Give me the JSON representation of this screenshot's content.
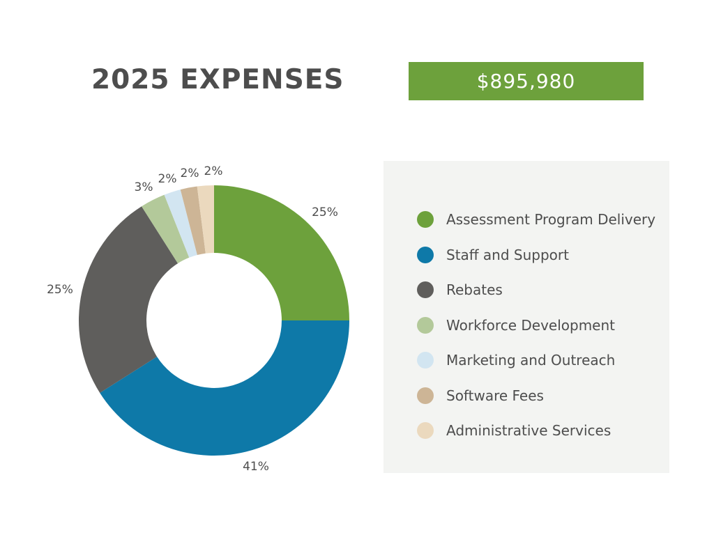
{
  "header": {
    "title": "2025 EXPENSES",
    "total": "$895,980",
    "total_bg": "#6da13c"
  },
  "chart_data": {
    "type": "pie",
    "variant": "donut",
    "title": "2025 EXPENSES",
    "total": "$895,980",
    "categories": [
      "Assessment Program Delivery",
      "Staff and Support",
      "Rebates",
      "Workforce Development",
      "Marketing and Outreach",
      "Software Fees",
      "Administrative Services"
    ],
    "values": [
      25,
      41,
      25,
      3,
      2,
      2,
      2
    ],
    "labels": [
      "25%",
      "41%",
      "25%",
      "3%",
      "2%",
      "2%",
      "2%"
    ],
    "colors": [
      "#6da13c",
      "#0e79a8",
      "#5f5e5c",
      "#b3c99a",
      "#d2e5f1",
      "#cdb596",
      "#ebd9be"
    ],
    "legend_position": "right"
  }
}
